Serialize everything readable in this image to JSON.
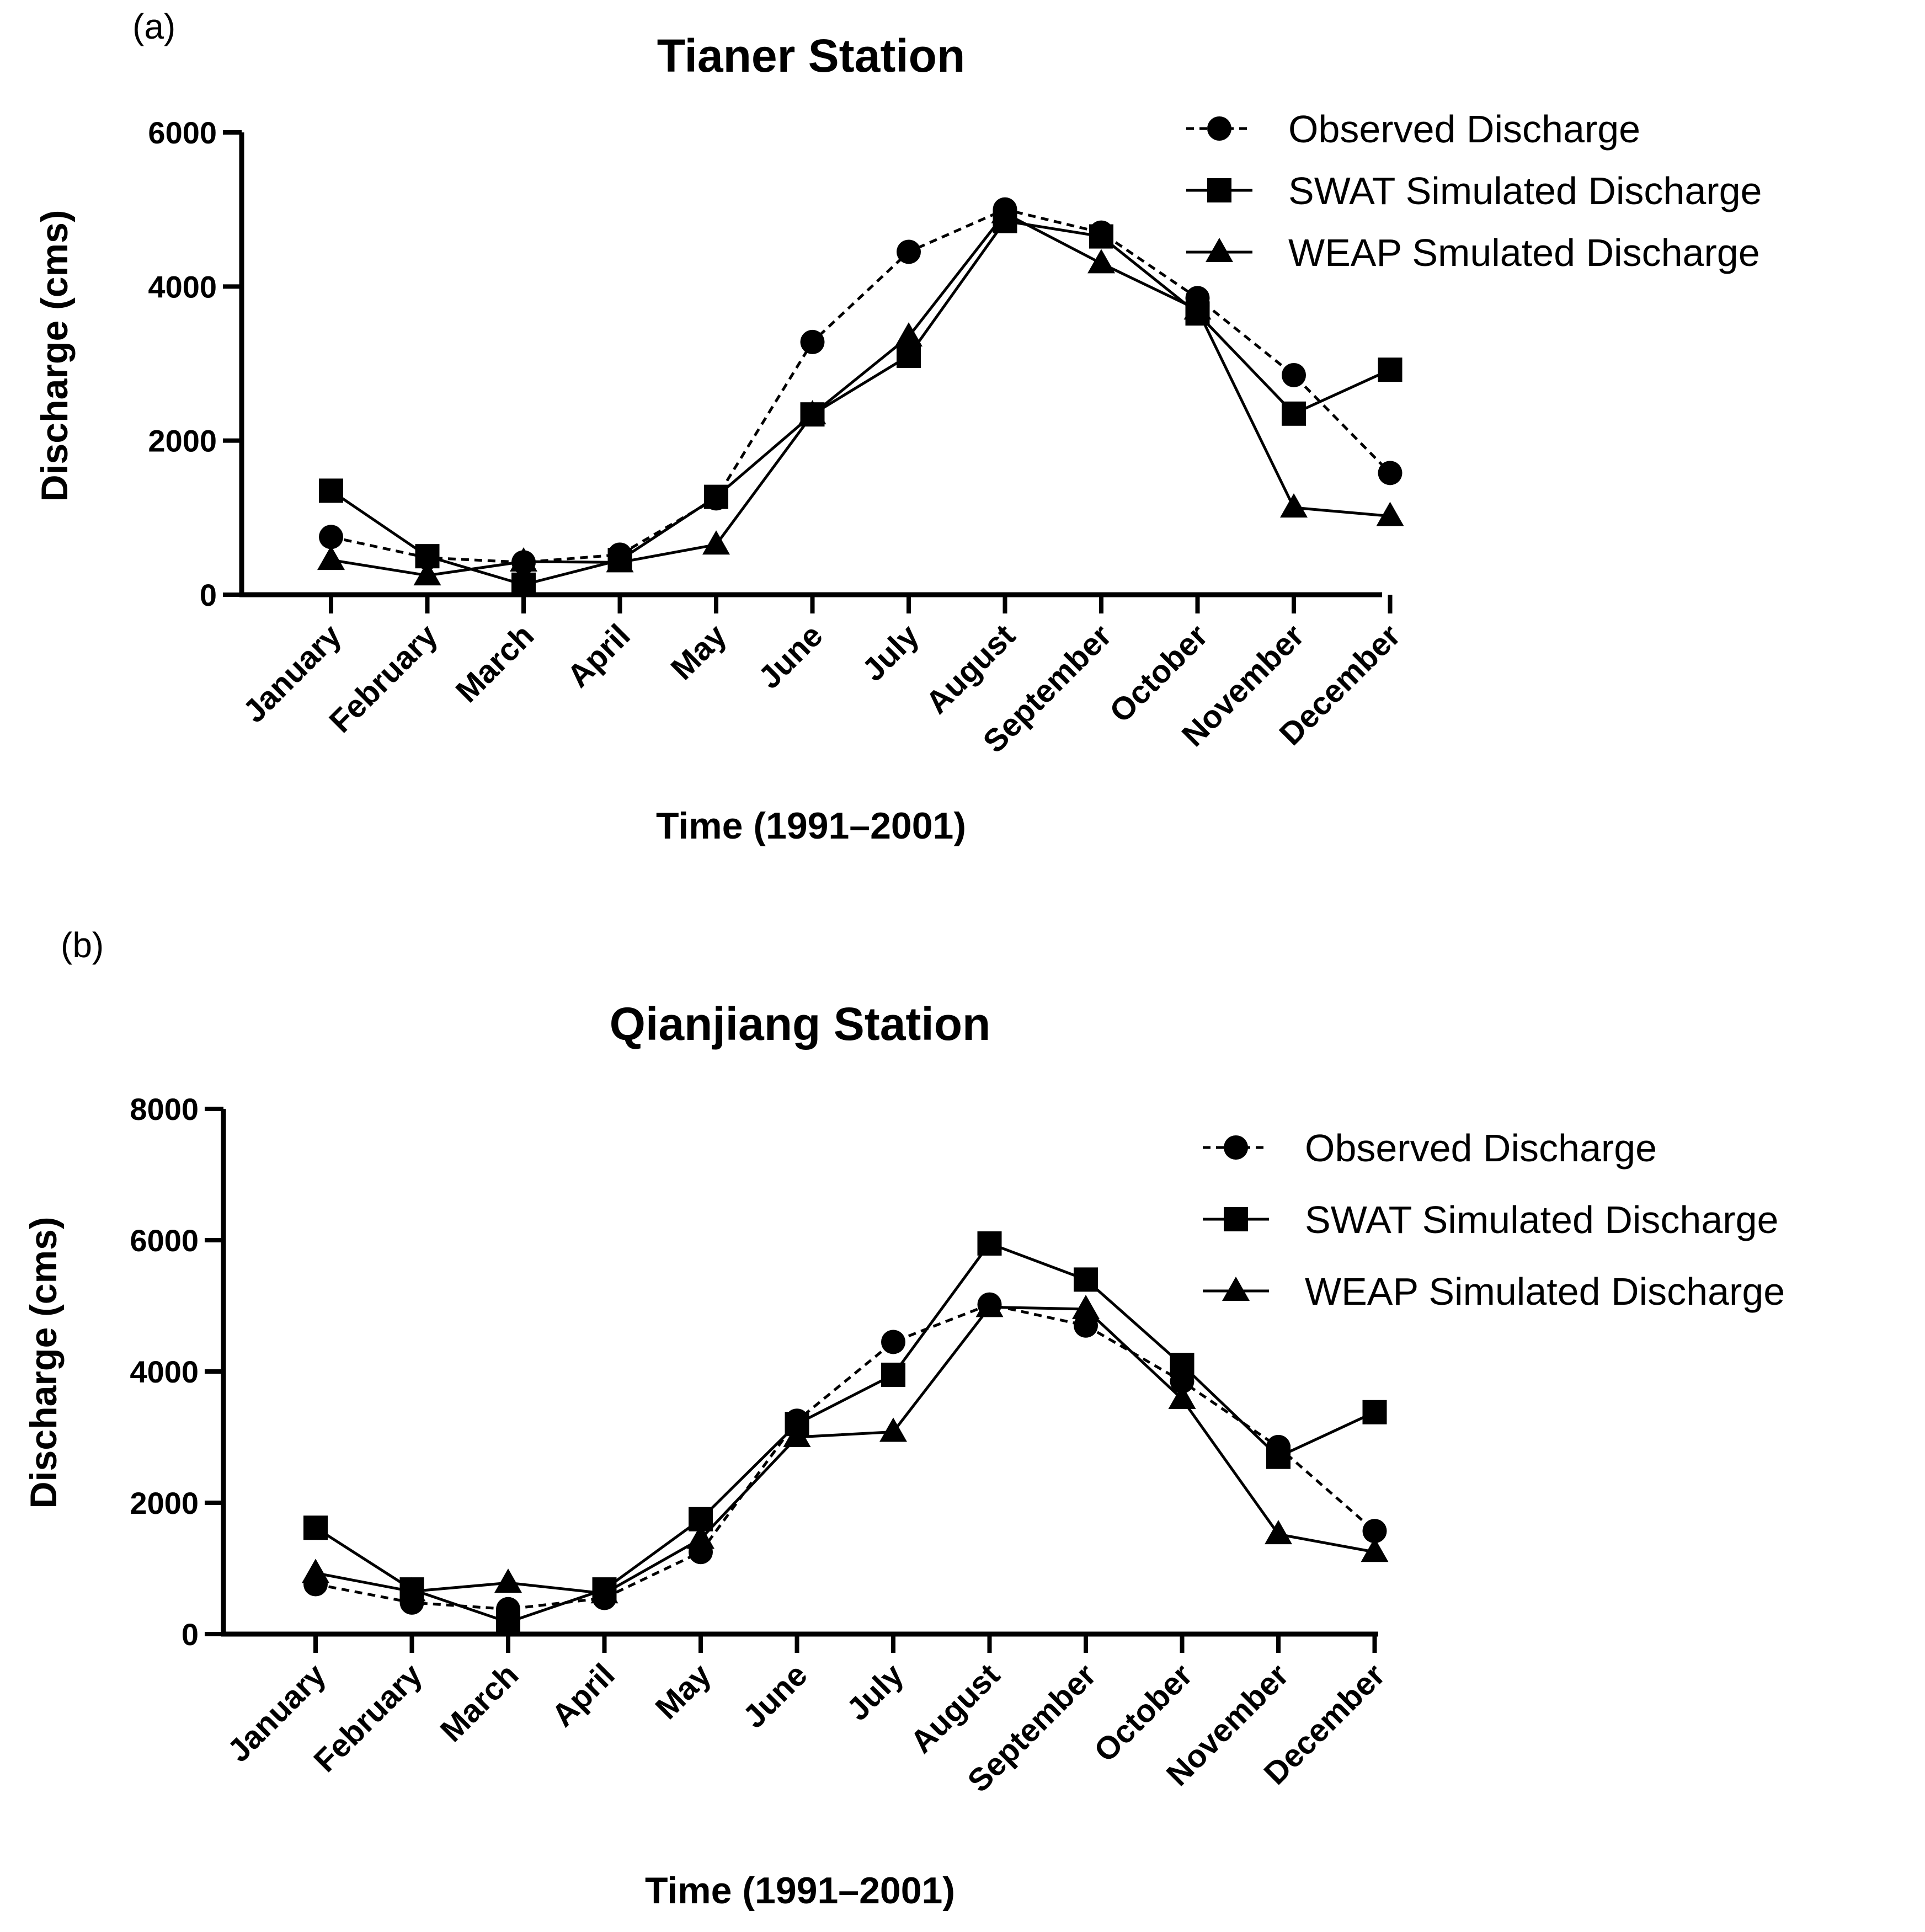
{
  "chart_data": [
    {
      "type": "line",
      "panel_label": "(a)",
      "title": "Tianer Station",
      "xlabel": "Time (1991–2001)",
      "ylabel": "Discharge (cms)",
      "ylim": [
        0,
        6000
      ],
      "yticks": [
        "0",
        "2000",
        "4000",
        "6000"
      ],
      "categories": [
        "January",
        "February",
        "March",
        "April",
        "May",
        "June",
        "July",
        "August",
        "September",
        "October",
        "November",
        "December"
      ],
      "legend_position": "top-right",
      "series": [
        {
          "name": "Observed Discharge",
          "marker": "circle",
          "line": "dashed",
          "values": [
            750,
            480,
            420,
            520,
            1250,
            3280,
            4450,
            5000,
            4700,
            3850,
            2850,
            1580
          ]
        },
        {
          "name": "SWAT Simulated Discharge",
          "marker": "square",
          "line": "solid",
          "values": [
            1350,
            500,
            130,
            450,
            1270,
            2340,
            3100,
            4850,
            4650,
            3650,
            2350,
            2920
          ]
        },
        {
          "name": "WEAP Smulated Discharge",
          "marker": "triangle",
          "line": "solid",
          "values": [
            450,
            250,
            430,
            420,
            650,
            2340,
            3350,
            4950,
            4300,
            3700,
            1130,
            1020
          ]
        }
      ]
    },
    {
      "type": "line",
      "panel_label": "(b)",
      "title": "Qianjiang Station",
      "xlabel": "Time (1991–2001)",
      "ylabel": "Discharge (cms)",
      "ylim": [
        0,
        8000
      ],
      "yticks": [
        "0",
        "2000",
        "4000",
        "6000",
        "8000"
      ],
      "categories": [
        "January",
        "February",
        "March",
        "April",
        "May",
        "June",
        "July",
        "August",
        "September",
        "October",
        "November",
        "December"
      ],
      "legend_position": "top-right",
      "series": [
        {
          "name": "Observed Discharge",
          "marker": "circle",
          "line": "dashed",
          "values": [
            760,
            480,
            380,
            550,
            1250,
            3250,
            4450,
            5020,
            4700,
            3850,
            2850,
            1570
          ]
        },
        {
          "name": "SWAT Simulated Discharge",
          "marker": "square",
          "line": "solid",
          "values": [
            1620,
            680,
            180,
            680,
            1750,
            3200,
            3950,
            5950,
            5400,
            4100,
            2700,
            3380
          ]
        },
        {
          "name": "WEAP Simulated Discharge",
          "marker": "triangle",
          "line": "solid",
          "values": [
            930,
            650,
            780,
            620,
            1450,
            3000,
            3080,
            4980,
            4950,
            3580,
            1520,
            1250
          ]
        }
      ]
    }
  ]
}
